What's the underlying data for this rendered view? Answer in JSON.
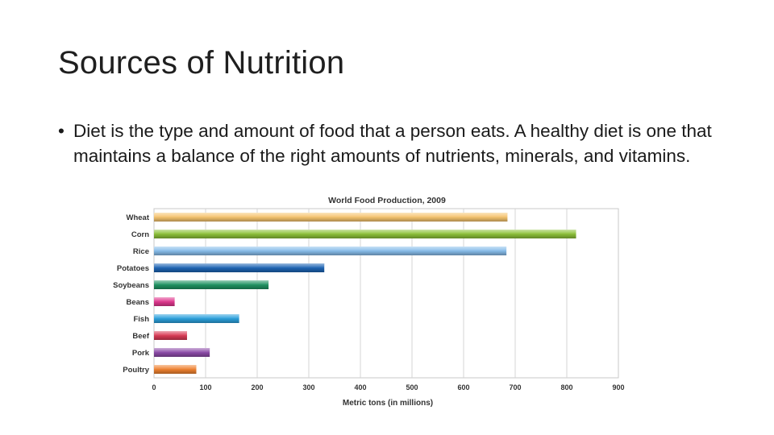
{
  "slide": {
    "title": "Sources of Nutrition",
    "bullet_symbol": "•",
    "bullet_text": "Diet is the type and amount of food that a person eats. A healthy diet is one that maintains a balance of the right amounts of nutrients, minerals, and vitamins."
  },
  "chart_data": {
    "type": "bar",
    "orientation": "horizontal",
    "title": "World Food Production, 2009",
    "xlabel": "Metric tons (in millions)",
    "ylabel": "",
    "xlim": [
      0,
      900
    ],
    "xticks": [
      0,
      100,
      200,
      300,
      400,
      500,
      600,
      700,
      800,
      900
    ],
    "grid": true,
    "categories": [
      "Wheat",
      "Corn",
      "Rice",
      "Potatoes",
      "Soybeans",
      "Beans",
      "Fish",
      "Beef",
      "Pork",
      "Poultry"
    ],
    "values": [
      685,
      818,
      683,
      330,
      222,
      40,
      165,
      64,
      108,
      82
    ],
    "colors": [
      "#f6c46e",
      "#8cc038",
      "#86bcea",
      "#1d64b4",
      "#1f9362",
      "#e0378e",
      "#2aa0dc",
      "#d93b55",
      "#8c4ba8",
      "#ef8230"
    ]
  }
}
